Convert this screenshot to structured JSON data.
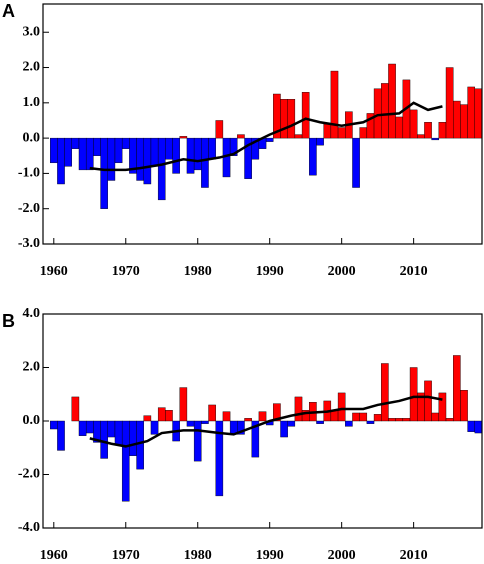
{
  "chart_data": [
    {
      "type": "bar",
      "title": "A",
      "x": [
        1960,
        1961,
        1962,
        1963,
        1964,
        1965,
        1966,
        1967,
        1968,
        1969,
        1970,
        1971,
        1972,
        1973,
        1974,
        1975,
        1976,
        1977,
        1978,
        1979,
        1980,
        1981,
        1982,
        1983,
        1984,
        1985,
        1986,
        1987,
        1988,
        1989,
        1990,
        1991,
        1992,
        1993,
        1994,
        1995,
        1996,
        1997,
        1998,
        1999,
        2000,
        2001,
        2002,
        2003,
        2004,
        2005,
        2006,
        2007,
        2008,
        2009,
        2010,
        2011,
        2012,
        2013,
        2014,
        2015,
        2016,
        2017,
        2018,
        2019
      ],
      "values": [
        -0.7,
        -1.3,
        -0.8,
        -0.3,
        -0.9,
        -0.9,
        -0.5,
        -2.0,
        -1.2,
        -0.7,
        -0.3,
        -1.0,
        -1.2,
        -1.3,
        -0.8,
        -1.75,
        -0.6,
        -1.0,
        0.05,
        -1.0,
        -0.9,
        -1.4,
        -0.6,
        0.5,
        -1.1,
        -0.5,
        0.1,
        -1.15,
        -0.6,
        -0.3,
        -0.1,
        1.25,
        1.1,
        1.1,
        0.1,
        1.3,
        -1.05,
        -0.2,
        0.4,
        1.9,
        0.3,
        0.75,
        -1.4,
        0.3,
        0.7,
        1.4,
        1.55,
        2.1,
        0.6,
        1.65,
        0.8,
        0.1,
        0.45,
        -0.05,
        0.45,
        2.0,
        1.05,
        0.95,
        1.45,
        1.4
      ],
      "positive_color": "#ff0000",
      "negative_color": "#0000ff",
      "line": {
        "color": "#000000",
        "x": [
          1965,
          1967,
          1970,
          1972,
          1975,
          1978,
          1980,
          1983,
          1985,
          1987,
          1990,
          1993,
          1995,
          1997,
          2000,
          2003,
          2005,
          2008,
          2010,
          2012,
          2014
        ],
        "values": [
          -0.85,
          -0.9,
          -0.9,
          -0.85,
          -0.75,
          -0.6,
          -0.65,
          -0.55,
          -0.45,
          -0.2,
          0.1,
          0.35,
          0.55,
          0.45,
          0.35,
          0.45,
          0.65,
          0.7,
          1.0,
          0.8,
          0.9
        ]
      },
      "xlim": [
        1958.5,
        2019.5
      ],
      "xticks": [
        1960,
        1970,
        1980,
        1990,
        2000,
        2010
      ],
      "ylim": [
        -3.0,
        3.8
      ],
      "yticks": [
        {
          "value": 3,
          "label": "3.0"
        },
        {
          "value": 2,
          "label": "2.0"
        },
        {
          "value": 1,
          "label": "1.0"
        },
        {
          "value": 0,
          "label": "0.0"
        },
        {
          "value": -1,
          "label": "-1.0"
        },
        {
          "value": -2,
          "label": "-2.0"
        },
        {
          "value": -3,
          "label": "-3.0"
        }
      ]
    },
    {
      "type": "bar",
      "title": "B",
      "x": [
        1960,
        1961,
        1962,
        1963,
        1964,
        1965,
        1966,
        1967,
        1968,
        1969,
        1970,
        1971,
        1972,
        1973,
        1974,
        1975,
        1976,
        1977,
        1978,
        1979,
        1980,
        1981,
        1982,
        1983,
        1984,
        1985,
        1986,
        1987,
        1988,
        1989,
        1990,
        1991,
        1992,
        1993,
        1994,
        1995,
        1996,
        1997,
        1998,
        1999,
        2000,
        2001,
        2002,
        2003,
        2004,
        2005,
        2006,
        2007,
        2008,
        2009,
        2010,
        2011,
        2012,
        2013,
        2014,
        2015,
        2016,
        2017,
        2018,
        2019
      ],
      "values": [
        -0.3,
        -1.1,
        0,
        0.9,
        -0.55,
        -0.45,
        -0.8,
        -1.4,
        -0.6,
        -0.9,
        -3.0,
        -1.3,
        -1.8,
        0.2,
        -0.5,
        0.5,
        0.4,
        -0.75,
        1.25,
        -0.2,
        -1.5,
        -0.1,
        0.6,
        -2.8,
        0.35,
        -0.5,
        -0.5,
        0.1,
        -1.35,
        0.35,
        -0.15,
        0.65,
        -0.6,
        -0.2,
        0.9,
        0.4,
        0.7,
        -0.1,
        0.75,
        0.4,
        1.05,
        -0.2,
        0.3,
        0.3,
        -0.1,
        0.25,
        2.15,
        0.1,
        0.1,
        0.1,
        2.0,
        1.05,
        1.5,
        0.3,
        1.05,
        0.1,
        2.45,
        1.15,
        -0.4,
        -0.45
      ],
      "positive_color": "#ff0000",
      "negative_color": "#0000ff",
      "line": {
        "color": "#000000",
        "x": [
          1965,
          1968,
          1970,
          1973,
          1975,
          1978,
          1980,
          1983,
          1985,
          1988,
          1990,
          1993,
          1995,
          1998,
          2000,
          2003,
          2005,
          2008,
          2010,
          2012,
          2014
        ],
        "values": [
          -0.65,
          -0.85,
          -0.95,
          -0.75,
          -0.45,
          -0.35,
          -0.35,
          -0.45,
          -0.5,
          -0.2,
          0.0,
          0.2,
          0.3,
          0.35,
          0.45,
          0.45,
          0.6,
          0.75,
          0.9,
          0.9,
          0.8
        ]
      },
      "xlim": [
        1958.5,
        2019.5
      ],
      "xticks": [
        1960,
        1970,
        1980,
        1990,
        2000,
        2010
      ],
      "ylim": [
        -4.0,
        4.0
      ],
      "yticks": [
        {
          "value": 4,
          "label": "4.0"
        },
        {
          "value": 2,
          "label": "2.0"
        },
        {
          "value": 0,
          "label": "0.0"
        },
        {
          "value": -2,
          "label": "-2.0"
        },
        {
          "value": -4,
          "label": "-4.0"
        }
      ]
    }
  ]
}
